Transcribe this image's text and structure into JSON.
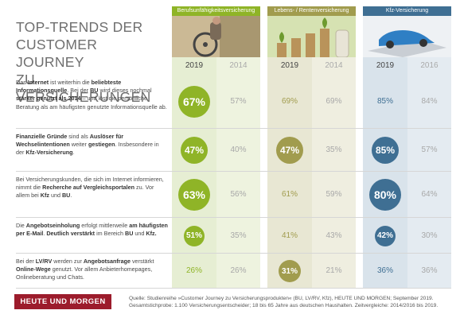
{
  "title": [
    "TOP-TRENDS DER",
    "CUSTOMER JOURNEY",
    "ZU VERSICHERUNGEN"
  ],
  "columns": [
    {
      "name": "Berufsunfähigkeitsversicherung",
      "y1": "2019",
      "y2": "2014",
      "header_color": "#8fb427"
    },
    {
      "name": "Lebens- / Rentenversicherung",
      "y1": "2019",
      "y2": "2014",
      "header_color": "#a19c4e"
    },
    {
      "name": "Kfz-Versicherung",
      "y1": "2019",
      "y2": "2016",
      "header_color": "#3f6f93"
    }
  ],
  "rows": [
    {
      "text_parts": [
        [
          "Das ",
          false
        ],
        [
          "Internet",
          true
        ],
        [
          " ist weiterhin die ",
          false
        ],
        [
          "beliebteste Informationsquelle",
          true
        ],
        [
          ". Bei der ",
          false
        ],
        [
          "BU",
          true
        ],
        [
          " wird dieses nochmal ",
          false
        ],
        [
          "stärker genutzt als 2014",
          true
        ],
        [
          " – und löst die persönliche Beratung als am häufigsten genutzte Informationsquelle ab.",
          false
        ]
      ],
      "values": [
        "67%",
        "57%",
        "69%",
        "69%",
        "85%",
        "84%"
      ],
      "circles": [
        true,
        false,
        false,
        false,
        false,
        false
      ]
    },
    {
      "text_parts": [
        [
          "Finanzielle Gründe",
          true
        ],
        [
          " sind als ",
          false
        ],
        [
          "Auslöser für Wechselintentionen",
          true
        ],
        [
          " weiter ",
          false
        ],
        [
          "gestiegen",
          true
        ],
        [
          ". Insbesondere in der ",
          false
        ],
        [
          "Kfz-Versicherung",
          true
        ],
        [
          ".",
          false
        ]
      ],
      "values": [
        "47%",
        "40%",
        "47%",
        "35%",
        "85%",
        "57%"
      ],
      "circles": [
        true,
        false,
        true,
        false,
        true,
        false
      ]
    },
    {
      "text_parts": [
        [
          "Bei Versicherungskunden, die sich im Internet informieren, nimmt die ",
          false
        ],
        [
          "Recherche auf Vergleichsportalen",
          true
        ],
        [
          " zu. Vor allem bei ",
          false
        ],
        [
          "Kfz",
          true
        ],
        [
          " und ",
          false
        ],
        [
          "BU",
          true
        ],
        [
          ".",
          false
        ]
      ],
      "values": [
        "63%",
        "56%",
        "61%",
        "59%",
        "80%",
        "64%"
      ],
      "circles": [
        true,
        false,
        false,
        false,
        true,
        false
      ]
    },
    {
      "text_parts": [
        [
          "Die ",
          false
        ],
        [
          "Angebotseinholung",
          true
        ],
        [
          " erfolgt mittlerweile ",
          false
        ],
        [
          "am häufigsten per E-Mail",
          true
        ],
        [
          ". ",
          false
        ],
        [
          "Deutlich verstärkt",
          true
        ],
        [
          " im Bereich ",
          false
        ],
        [
          "BU",
          true
        ],
        [
          " und ",
          false
        ],
        [
          "Kfz.",
          true
        ]
      ],
      "values": [
        "51%",
        "35%",
        "41%",
        "43%",
        "42%",
        "30%"
      ],
      "circles": [
        true,
        false,
        false,
        false,
        true,
        false
      ]
    },
    {
      "text_parts": [
        [
          "Bei der ",
          false
        ],
        [
          "LV/RV",
          true
        ],
        [
          " werden zur ",
          false
        ],
        [
          "Angebotsanfrage",
          true
        ],
        [
          " verstärkt ",
          false
        ],
        [
          "Online-Wege",
          true
        ],
        [
          " genutzt. Vor allem Anbieterhomepages, Onlineberatung und Chats.",
          false
        ]
      ],
      "values": [
        "26%",
        "26%",
        "31%",
        "21%",
        "36%",
        "36%"
      ],
      "circles": [
        false,
        false,
        true,
        false,
        false,
        false
      ]
    }
  ],
  "logo": "HEUTE UND MORGEN",
  "footer": [
    "Quelle: Studienreihe »Customer Journey zu Versicherungsprodukten« (BU, LV/RV, Kfz), HEUTE UND MORGEN; September 2019.",
    "Gesamtstichprobe: 1.100 Versicherungsentscheider; 18 bis 65 Jahre aus deutschen Haushalten. Zeitvergleiche: 2014/2016 bis 2019."
  ]
}
